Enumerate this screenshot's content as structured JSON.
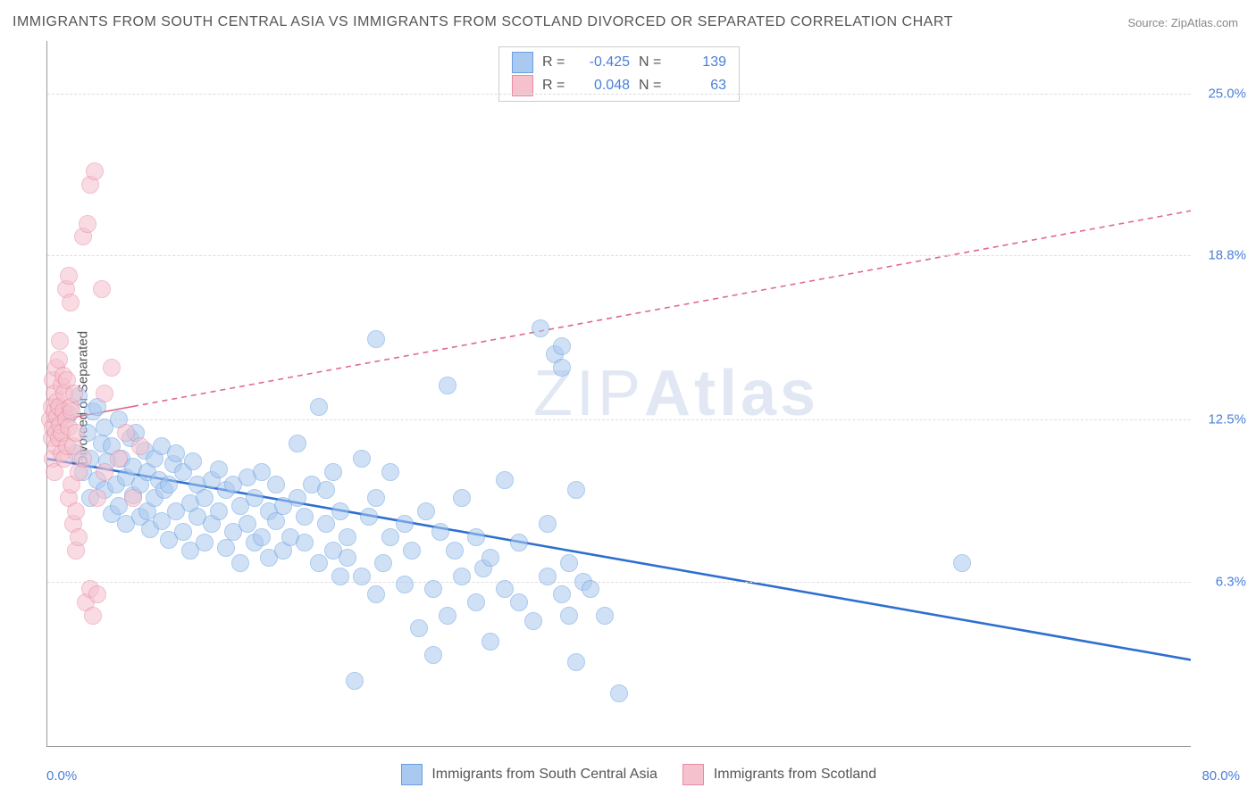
{
  "title": "IMMIGRANTS FROM SOUTH CENTRAL ASIA VS IMMIGRANTS FROM SCOTLAND DIVORCED OR SEPARATED CORRELATION CHART",
  "source_label": "Source: ZipAtlas.com",
  "ylabel": "Divorced or Separated",
  "watermark_light": "ZIP",
  "watermark_bold": "Atlas",
  "chart": {
    "type": "scatter",
    "xlim": [
      0,
      80
    ],
    "ylim": [
      0,
      27
    ],
    "xunit": "%",
    "yunit": "%",
    "yticks": [
      6.3,
      12.5,
      18.8,
      25.0
    ],
    "xlabel_min": "0.0%",
    "xlabel_max": "80.0%",
    "background_color": "#ffffff",
    "grid_color": "#dddddd",
    "axis_color": "#999999",
    "tick_label_color": "#4a7fd8",
    "point_radius": 9,
    "point_opacity": 0.55
  },
  "series": [
    {
      "name": "Immigrants from South Central Asia",
      "color_fill": "#aac9f0",
      "color_stroke": "#6a9fe0",
      "swatch_border": "#6a9fe0",
      "R": "-0.425",
      "N": "139",
      "trend": {
        "x1": 0,
        "y1": 11.0,
        "x2": 80,
        "y2": 3.3,
        "color": "#2e6fd0",
        "width": 2.6,
        "dash": "none",
        "solid_until_x": 36
      },
      "points": [
        [
          1.5,
          12.7
        ],
        [
          2.0,
          11.2
        ],
        [
          2.2,
          13.4
        ],
        [
          2.5,
          10.5
        ],
        [
          2.8,
          12.0
        ],
        [
          3.0,
          11.0
        ],
        [
          3.0,
          9.5
        ],
        [
          3.2,
          12.8
        ],
        [
          3.5,
          10.2
        ],
        [
          3.5,
          13.0
        ],
        [
          3.8,
          11.6
        ],
        [
          4.0,
          9.8
        ],
        [
          4.0,
          12.2
        ],
        [
          4.2,
          10.9
        ],
        [
          4.5,
          11.5
        ],
        [
          4.5,
          8.9
        ],
        [
          4.8,
          10.0
        ],
        [
          5.0,
          12.5
        ],
        [
          5.0,
          9.2
        ],
        [
          5.2,
          11.0
        ],
        [
          5.5,
          10.3
        ],
        [
          5.5,
          8.5
        ],
        [
          5.8,
          11.8
        ],
        [
          6.0,
          9.6
        ],
        [
          6.0,
          10.7
        ],
        [
          6.2,
          12.0
        ],
        [
          6.5,
          8.8
        ],
        [
          6.5,
          10.0
        ],
        [
          6.8,
          11.3
        ],
        [
          7.0,
          9.0
        ],
        [
          7.0,
          10.5
        ],
        [
          7.2,
          8.3
        ],
        [
          7.5,
          11.0
        ],
        [
          7.5,
          9.5
        ],
        [
          7.8,
          10.2
        ],
        [
          8.0,
          8.6
        ],
        [
          8.0,
          11.5
        ],
        [
          8.2,
          9.8
        ],
        [
          8.5,
          10.0
        ],
        [
          8.5,
          7.9
        ],
        [
          8.8,
          10.8
        ],
        [
          9.0,
          9.0
        ],
        [
          9.0,
          11.2
        ],
        [
          9.5,
          8.2
        ],
        [
          9.5,
          10.5
        ],
        [
          10.0,
          9.3
        ],
        [
          10.0,
          7.5
        ],
        [
          10.2,
          10.9
        ],
        [
          10.5,
          8.8
        ],
        [
          10.5,
          10.0
        ],
        [
          11.0,
          9.5
        ],
        [
          11.0,
          7.8
        ],
        [
          11.5,
          10.2
        ],
        [
          11.5,
          8.5
        ],
        [
          12.0,
          9.0
        ],
        [
          12.0,
          10.6
        ],
        [
          12.5,
          7.6
        ],
        [
          12.5,
          9.8
        ],
        [
          13.0,
          8.2
        ],
        [
          13.0,
          10.0
        ],
        [
          13.5,
          9.2
        ],
        [
          13.5,
          7.0
        ],
        [
          14.0,
          10.3
        ],
        [
          14.0,
          8.5
        ],
        [
          14.5,
          9.5
        ],
        [
          14.5,
          7.8
        ],
        [
          15.0,
          8.0
        ],
        [
          15.0,
          10.5
        ],
        [
          15.5,
          9.0
        ],
        [
          15.5,
          7.2
        ],
        [
          16.0,
          8.6
        ],
        [
          16.0,
          10.0
        ],
        [
          16.5,
          7.5
        ],
        [
          16.5,
          9.2
        ],
        [
          17.0,
          8.0
        ],
        [
          17.5,
          11.6
        ],
        [
          17.5,
          9.5
        ],
        [
          18.0,
          7.8
        ],
        [
          18.0,
          8.8
        ],
        [
          18.5,
          10.0
        ],
        [
          19.0,
          7.0
        ],
        [
          19.0,
          13.0
        ],
        [
          19.5,
          8.5
        ],
        [
          19.5,
          9.8
        ],
        [
          20.0,
          7.5
        ],
        [
          20.0,
          10.5
        ],
        [
          20.5,
          6.5
        ],
        [
          20.5,
          9.0
        ],
        [
          21.0,
          8.0
        ],
        [
          21.0,
          7.2
        ],
        [
          22.0,
          11.0
        ],
        [
          22.0,
          6.5
        ],
        [
          22.5,
          8.8
        ],
        [
          23.0,
          5.8
        ],
        [
          23.0,
          9.5
        ],
        [
          23.5,
          7.0
        ],
        [
          24.0,
          8.0
        ],
        [
          24.0,
          10.5
        ],
        [
          25.0,
          6.2
        ],
        [
          25.0,
          8.5
        ],
        [
          25.5,
          7.5
        ],
        [
          26.0,
          4.5
        ],
        [
          26.5,
          9.0
        ],
        [
          27.0,
          6.0
        ],
        [
          27.5,
          8.2
        ],
        [
          28.0,
          5.0
        ],
        [
          28.0,
          13.8
        ],
        [
          28.5,
          7.5
        ],
        [
          29.0,
          6.5
        ],
        [
          29.0,
          9.5
        ],
        [
          30.0,
          5.5
        ],
        [
          30.0,
          8.0
        ],
        [
          30.5,
          6.8
        ],
        [
          31.0,
          4.0
        ],
        [
          31.0,
          7.2
        ],
        [
          32.0,
          6.0
        ],
        [
          32.0,
          10.2
        ],
        [
          33.0,
          5.5
        ],
        [
          33.0,
          7.8
        ],
        [
          34.0,
          4.8
        ],
        [
          34.5,
          16.0
        ],
        [
          35.0,
          6.5
        ],
        [
          35.0,
          8.5
        ],
        [
          35.5,
          15.0
        ],
        [
          36.0,
          5.8
        ],
        [
          36.0,
          14.5
        ],
        [
          36.0,
          15.3
        ],
        [
          36.5,
          7.0
        ],
        [
          37.0,
          3.2
        ],
        [
          37.0,
          9.8
        ],
        [
          37.5,
          6.3
        ],
        [
          38.0,
          6.0
        ],
        [
          39.0,
          5.0
        ],
        [
          40.0,
          2.0
        ],
        [
          21.5,
          2.5
        ],
        [
          23.0,
          15.6
        ],
        [
          64.0,
          7.0
        ],
        [
          27.0,
          3.5
        ],
        [
          36.5,
          5.0
        ]
      ]
    },
    {
      "name": "Immigrants from Scotland",
      "color_fill": "#f5c1cd",
      "color_stroke": "#e88ba3",
      "swatch_border": "#e88ba3",
      "R": "0.048",
      "N": "63",
      "trend": {
        "x1": 0,
        "y1": 12.4,
        "x2": 80,
        "y2": 20.5,
        "color": "#e06a8a",
        "width": 1.6,
        "dash": "6,5",
        "solid_until_x": 6
      },
      "points": [
        [
          0.2,
          12.5
        ],
        [
          0.3,
          13.0
        ],
        [
          0.3,
          11.8
        ],
        [
          0.4,
          12.2
        ],
        [
          0.4,
          14.0
        ],
        [
          0.4,
          11.0
        ],
        [
          0.5,
          12.8
        ],
        [
          0.5,
          13.5
        ],
        [
          0.5,
          10.5
        ],
        [
          0.6,
          12.0
        ],
        [
          0.6,
          14.5
        ],
        [
          0.6,
          11.5
        ],
        [
          0.7,
          13.2
        ],
        [
          0.7,
          12.6
        ],
        [
          0.8,
          14.8
        ],
        [
          0.8,
          11.8
        ],
        [
          0.8,
          13.0
        ],
        [
          0.9,
          12.3
        ],
        [
          0.9,
          15.5
        ],
        [
          1.0,
          11.2
        ],
        [
          1.0,
          13.8
        ],
        [
          1.0,
          12.0
        ],
        [
          1.1,
          14.2
        ],
        [
          1.1,
          12.8
        ],
        [
          1.2,
          11.0
        ],
        [
          1.2,
          13.5
        ],
        [
          1.3,
          12.5
        ],
        [
          1.3,
          17.5
        ],
        [
          1.4,
          14.0
        ],
        [
          1.4,
          11.5
        ],
        [
          1.5,
          18.0
        ],
        [
          1.5,
          12.2
        ],
        [
          1.5,
          9.5
        ],
        [
          1.6,
          13.0
        ],
        [
          1.6,
          17.0
        ],
        [
          1.7,
          10.0
        ],
        [
          1.7,
          12.8
        ],
        [
          1.8,
          11.5
        ],
        [
          1.8,
          8.5
        ],
        [
          1.9,
          13.5
        ],
        [
          2.0,
          9.0
        ],
        [
          2.0,
          12.0
        ],
        [
          2.0,
          7.5
        ],
        [
          2.2,
          10.5
        ],
        [
          2.2,
          8.0
        ],
        [
          2.5,
          11.0
        ],
        [
          2.5,
          19.5
        ],
        [
          2.7,
          5.5
        ],
        [
          2.8,
          20.0
        ],
        [
          3.0,
          21.5
        ],
        [
          3.0,
          6.0
        ],
        [
          3.2,
          5.0
        ],
        [
          3.3,
          22.0
        ],
        [
          3.5,
          9.5
        ],
        [
          3.5,
          5.8
        ],
        [
          3.8,
          17.5
        ],
        [
          4.0,
          10.5
        ],
        [
          4.0,
          13.5
        ],
        [
          4.5,
          14.5
        ],
        [
          5.0,
          11.0
        ],
        [
          5.5,
          12.0
        ],
        [
          6.0,
          9.5
        ],
        [
          6.5,
          11.5
        ]
      ]
    }
  ],
  "xlegend_label_a": "Immigrants from South Central Asia",
  "xlegend_label_b": "Immigrants from Scotland",
  "top_legend": {
    "rows": [
      {
        "swatch_fill": "#aac9f0",
        "swatch_stroke": "#6a9fe0",
        "R_label": "R =",
        "R": "-0.425",
        "N_label": "N =",
        "N": "139"
      },
      {
        "swatch_fill": "#f5c1cd",
        "swatch_stroke": "#e88ba3",
        "R_label": "R =",
        "R": "0.048",
        "N_label": "N =",
        "N": "63"
      }
    ]
  }
}
